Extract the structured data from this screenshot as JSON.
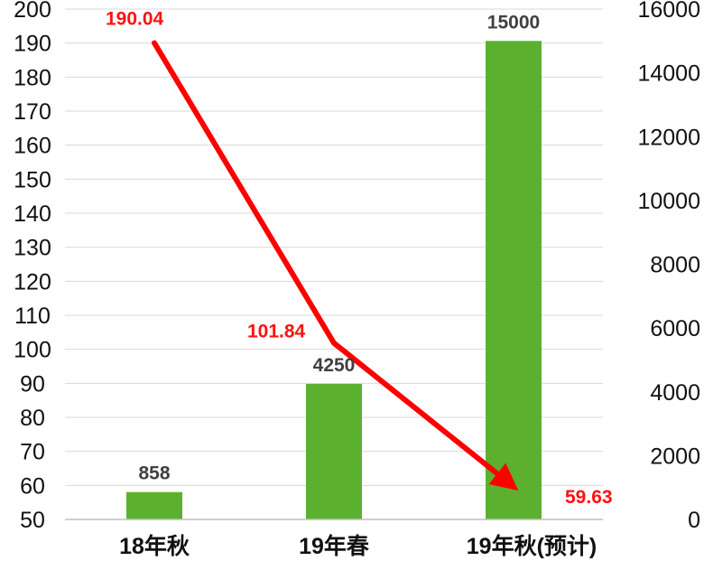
{
  "chart_data": {
    "type": "bar",
    "categories": [
      "18年秋",
      "19年春",
      "19年秋(预计)"
    ],
    "series": [
      {
        "kind": "bar",
        "axis": "right",
        "values": [
          858,
          4250,
          15000
        ],
        "color": "#5bb12f",
        "labels": [
          "858",
          "4250",
          "15000"
        ]
      },
      {
        "kind": "line",
        "axis": "left",
        "values": [
          190.04,
          101.84,
          59.63
        ],
        "color": "#ff0000",
        "labels": [
          "190.04",
          "101.84",
          "59.63"
        ],
        "arrow_end": true
      }
    ],
    "left_axis": {
      "min": 50,
      "max": 200,
      "step": 10,
      "tick_labels": [
        "50",
        "60",
        "70",
        "80",
        "90",
        "100",
        "110",
        "120",
        "130",
        "140",
        "150",
        "160",
        "170",
        "180",
        "190",
        "200"
      ]
    },
    "right_axis": {
      "min": 0,
      "max": 16000,
      "step": 2000,
      "tick_labels": [
        "0",
        "2000",
        "4000",
        "6000",
        "8000",
        "10000",
        "12000",
        "14000",
        "16000"
      ]
    },
    "grid": true,
    "legend": "none"
  }
}
